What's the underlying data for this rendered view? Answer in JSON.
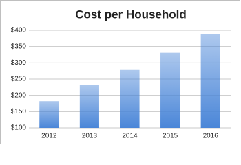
{
  "chart_data": {
    "type": "bar",
    "title": "Cost per Household",
    "categories": [
      "2012",
      "2013",
      "2014",
      "2015",
      "2016"
    ],
    "values": [
      182,
      233,
      278,
      331,
      388
    ],
    "color": "#4a86d8",
    "ylim": [
      100,
      400
    ],
    "yticks": [
      {
        "value": 100,
        "label": "$100"
      },
      {
        "value": 150,
        "label": "$150"
      },
      {
        "value": 200,
        "label": "$200"
      },
      {
        "value": 250,
        "label": "$250"
      },
      {
        "value": 300,
        "label": "$300"
      },
      {
        "value": 350,
        "label": "$350"
      },
      {
        "value": 400,
        "label": "$400"
      }
    ],
    "grid": true
  }
}
